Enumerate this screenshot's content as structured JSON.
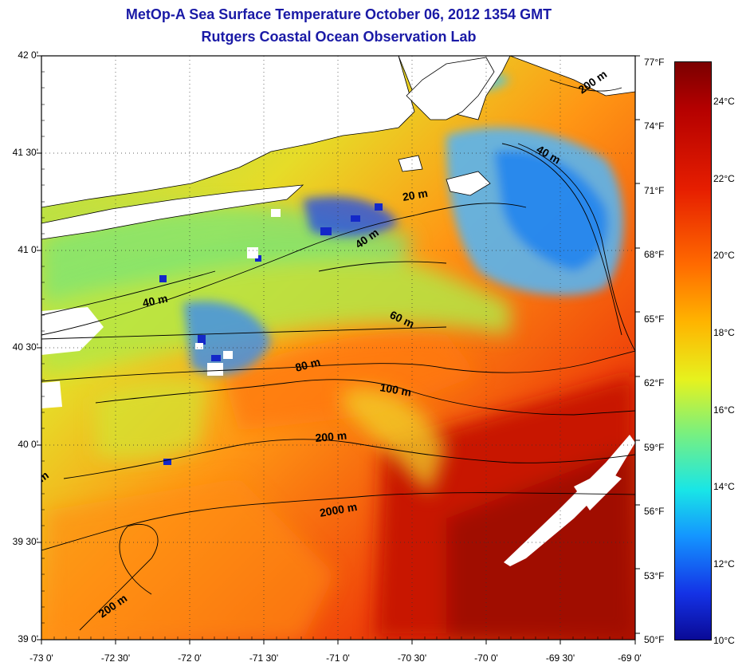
{
  "header": {
    "title": "MetOp-A Sea Surface Temperature October 06, 2012 1354 GMT",
    "subtitle": "Rutgers Coastal Ocean Observation Lab"
  },
  "axes": {
    "latitude_labels": [
      "42 0'",
      "41 30'",
      "41 0'",
      "40 30'",
      "40 0'",
      "39 30'",
      "39 0'"
    ],
    "longitude_labels": [
      "-73 0'",
      "-72 30'",
      "-72 0'",
      "-71 30'",
      "-71 0'",
      "-70 30'",
      "-70 0'",
      "-69 30'",
      "-69 0'"
    ]
  },
  "colorbar": {
    "fahrenheit_labels": [
      "77°F",
      "74°F",
      "71°F",
      "68°F",
      "65°F",
      "62°F",
      "59°F",
      "56°F",
      "53°F",
      "50°F"
    ],
    "celsius_labels": [
      "24°C",
      "22°C",
      "20°C",
      "18°C",
      "16°C",
      "14°C",
      "12°C",
      "10°C"
    ]
  },
  "isobaths": {
    "labels": [
      "200 m",
      "40 m",
      "20 m",
      "40 m",
      "40 m",
      "60 m",
      "80 m",
      "100 m",
      "200 m",
      "2000 m",
      "200 m",
      "m"
    ]
  },
  "colors": {
    "title": "#1a1aa6",
    "land": "#ffffff",
    "cloud": "#ffffff",
    "cold": "#1432e6",
    "warm": "#c80a00"
  }
}
